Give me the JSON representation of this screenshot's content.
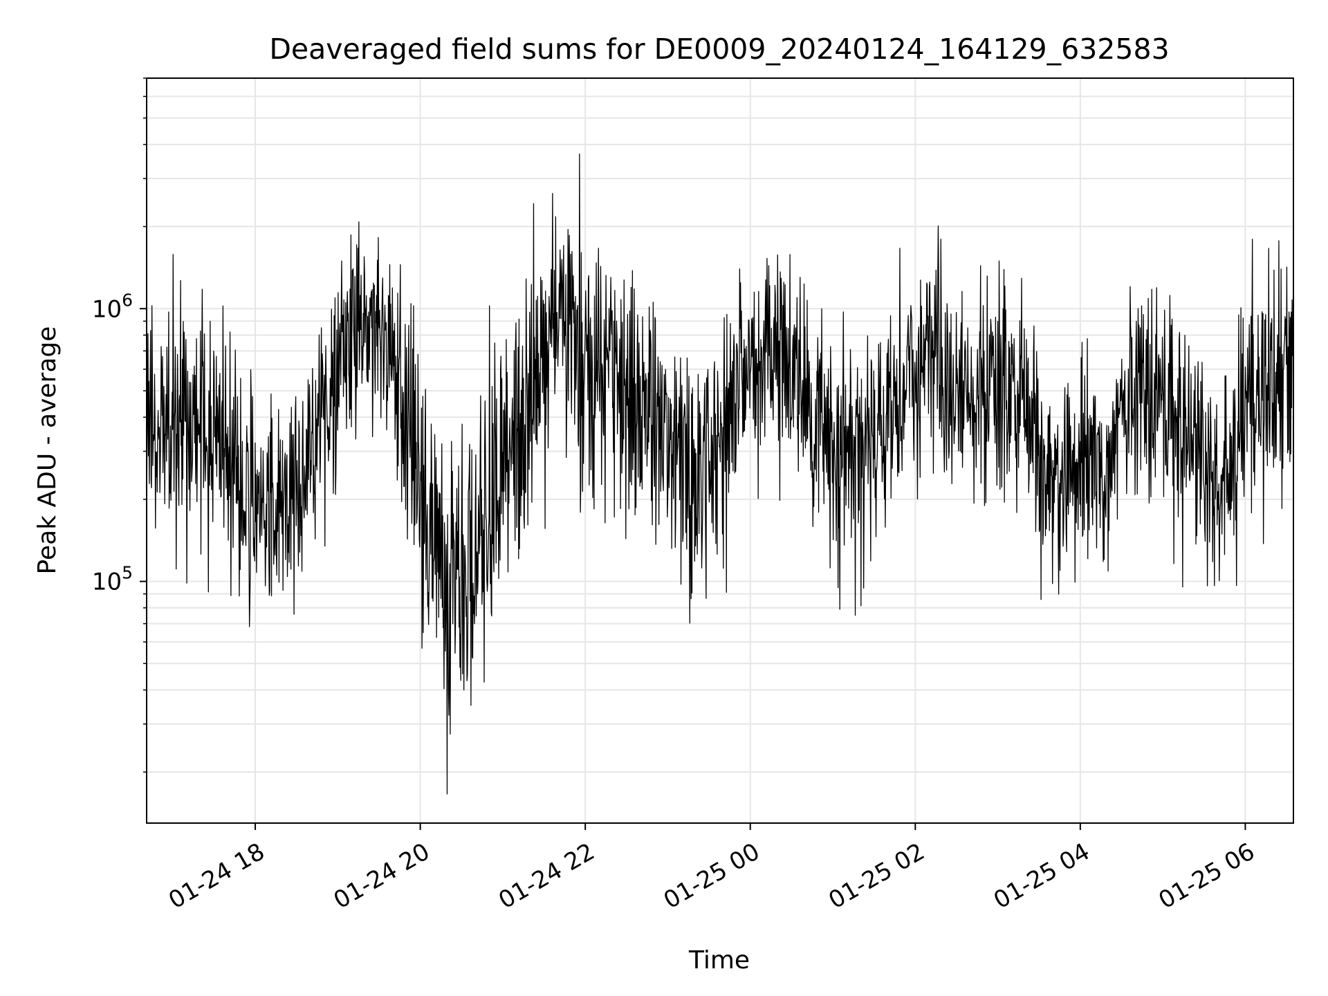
{
  "chart_data": {
    "type": "line",
    "title": "Deaveraged field sums for DE0009_20240124_164129_632583",
    "xlabel": "Time",
    "ylabel": "Peak ADU - average",
    "y_scale": "log",
    "ylim": [
      13000,
      7000000
    ],
    "xlim": [
      "2024-01-24 16:41",
      "2024-01-25 06:35"
    ],
    "x_ticks": [
      {
        "time": "2024-01-24 18:00",
        "label": "01-24 18"
      },
      {
        "time": "2024-01-24 20:00",
        "label": "01-24 20"
      },
      {
        "time": "2024-01-24 22:00",
        "label": "01-24 22"
      },
      {
        "time": "2024-01-25 00:00",
        "label": "01-25 00"
      },
      {
        "time": "2024-01-25 02:00",
        "label": "01-25 02"
      },
      {
        "time": "2024-01-25 04:00",
        "label": "01-25 04"
      },
      {
        "time": "2024-01-25 06:00",
        "label": "01-25 06"
      }
    ],
    "y_ticks": [
      {
        "value": 100000,
        "base": "10",
        "exp": "5"
      },
      {
        "value": 1000000,
        "base": "10",
        "exp": "6"
      }
    ],
    "grid": true,
    "line_color": "#000000",
    "grid_color": "#e6e6e6",
    "series": [
      {
        "x": [
          "2024-01-24 16:41",
          "2024-01-24 17:00",
          "2024-01-24 17:20",
          "2024-01-24 17:40",
          "2024-01-24 18:00",
          "2024-01-24 18:20",
          "2024-01-24 18:40",
          "2024-01-24 19:00",
          "2024-01-24 19:20",
          "2024-01-24 19:40",
          "2024-01-24 20:00",
          "2024-01-24 20:20",
          "2024-01-24 20:40",
          "2024-01-24 21:00",
          "2024-01-24 21:20",
          "2024-01-24 21:40",
          "2024-01-24 22:00",
          "2024-01-24 22:20",
          "2024-01-24 22:40",
          "2024-01-24 23:00",
          "2024-01-24 23:20",
          "2024-01-24 23:40",
          "2024-01-25 00:00",
          "2024-01-25 00:20",
          "2024-01-25 00:40",
          "2024-01-25 01:00",
          "2024-01-25 01:20",
          "2024-01-25 01:40",
          "2024-01-25 02:00",
          "2024-01-25 02:20",
          "2024-01-25 02:40",
          "2024-01-25 03:00",
          "2024-01-25 03:20",
          "2024-01-25 03:40",
          "2024-01-25 04:00",
          "2024-01-25 04:20",
          "2024-01-25 04:40",
          "2024-01-25 05:00",
          "2024-01-25 05:20",
          "2024-01-25 05:40",
          "2024-01-25 06:00",
          "2024-01-25 06:20",
          "2024-01-25 06:35"
        ],
        "y": [
          350000,
          420000,
          380000,
          300000,
          200000,
          180000,
          300000,
          650000,
          900000,
          700000,
          250000,
          90000,
          120000,
          250000,
          500000,
          1000000,
          700000,
          500000,
          420000,
          350000,
          280000,
          350000,
          650000,
          700000,
          500000,
          300000,
          320000,
          400000,
          650000,
          600000,
          500000,
          550000,
          450000,
          220000,
          300000,
          230000,
          650000,
          450000,
          350000,
          200000,
          400000,
          550000,
          600000
        ],
        "noise_log10": [
          0.45,
          0.45,
          0.45,
          0.45,
          0.4,
          0.4,
          0.4,
          0.35,
          0.35,
          0.4,
          0.5,
          0.5,
          0.5,
          0.5,
          0.5,
          0.5,
          0.5,
          0.45,
          0.45,
          0.45,
          0.45,
          0.4,
          0.35,
          0.4,
          0.4,
          0.45,
          0.4,
          0.4,
          0.35,
          0.4,
          0.4,
          0.4,
          0.4,
          0.4,
          0.4,
          0.4,
          0.4,
          0.4,
          0.4,
          0.4,
          0.4,
          0.4,
          0.4
        ]
      }
    ]
  }
}
